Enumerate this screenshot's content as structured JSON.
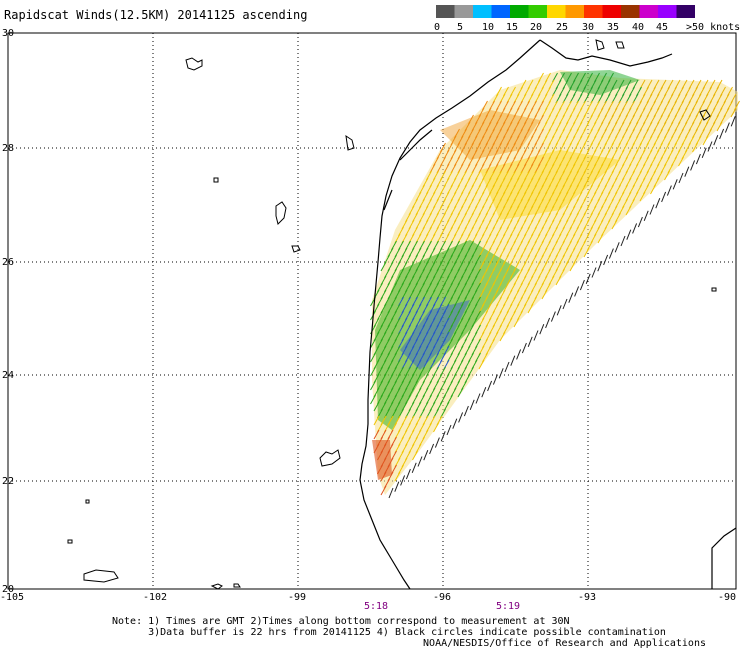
{
  "title": "Rapidscat Winds(12.5KM) 20141125 ascending",
  "legend": {
    "colors": [
      "#555555",
      "#999999",
      "#00bfff",
      "#0066ff",
      "#00aa00",
      "#33cc00",
      "#ffd700",
      "#ff9900",
      "#ff3300",
      "#ee0000",
      "#993300",
      "#cc00cc",
      "#9900ff",
      "#330066"
    ],
    "labels": [
      "0",
      "5",
      "10",
      "15",
      "20",
      "25",
      "30",
      "35",
      "40",
      "45",
      ">50 knots"
    ]
  },
  "axes": {
    "lon_ticks": [
      "-105",
      "-102",
      "-99",
      "-96",
      "-93",
      "-90"
    ],
    "lat_ticks": [
      "30",
      "28",
      "26",
      "24",
      "22",
      "20"
    ]
  },
  "times": [
    "5:18",
    "5:19"
  ],
  "note_lines": [
    "Note: 1) Times are GMT 2)Times along bottom correspond to measurement at 30N",
    "      3)Data buffer is 22 hrs from 20141125 4) Black circles indicate possible contamination"
  ],
  "footer": "NOAA/NESDIS/Office of Research and Applications"
}
